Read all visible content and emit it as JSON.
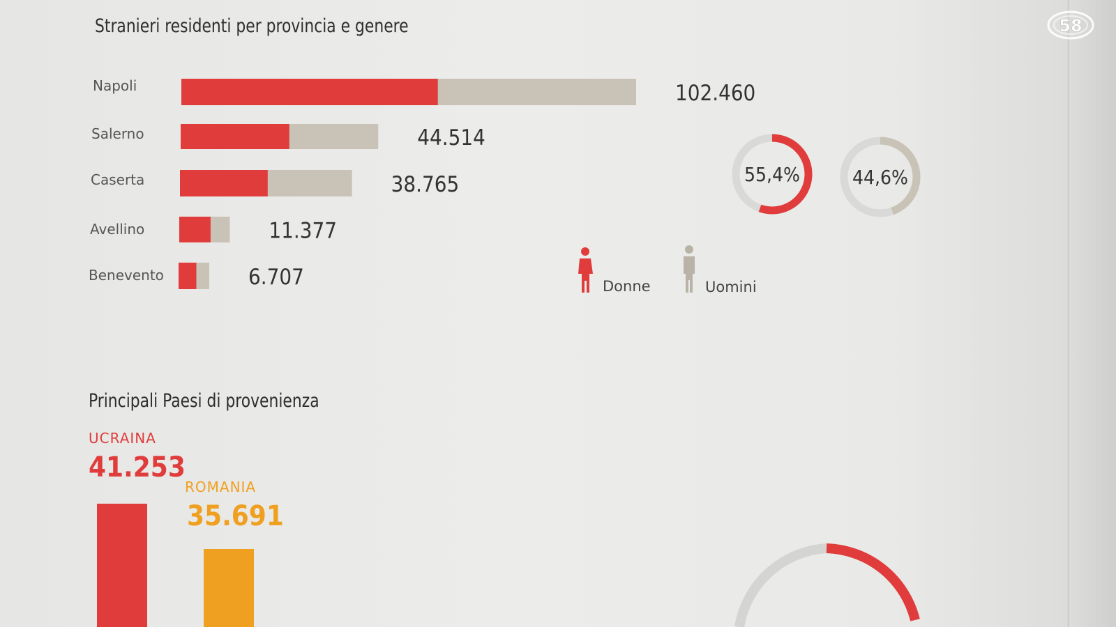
{
  "logo": {
    "text": "58"
  },
  "chart_data": [
    {
      "type": "bar",
      "title": "Stranieri residenti per provincia e genere",
      "categories": [
        "Napoli",
        "Salerno",
        "Caserta",
        "Avellino",
        "Benevento"
      ],
      "values": [
        102460,
        44514,
        38765,
        11377,
        6707
      ],
      "value_labels": [
        "102.460",
        "44.514",
        "38.765",
        "11.377",
        "6.707"
      ],
      "donne_share": [
        0.564,
        0.55,
        0.51,
        0.62,
        0.58
      ],
      "colors": {
        "donne": "#e03c3c",
        "uomini": "#c9c3b7"
      },
      "gender_rings": [
        {
          "label": "55,4%",
          "value": 55.4,
          "color": "#e03c3c"
        },
        {
          "label": "44,6%",
          "value": 44.6,
          "color": "#c9c3b7"
        }
      ],
      "legend": [
        {
          "label": "Donne",
          "color": "#e03c3c",
          "icon": "woman-icon"
        },
        {
          "label": "Uomini",
          "color": "#b9b3a7",
          "icon": "man-icon"
        }
      ]
    },
    {
      "type": "bar",
      "title": "Principali Paesi di provenienza",
      "categories": [
        "UCRAINA",
        "ROMANIA"
      ],
      "values": [
        41253,
        35691
      ],
      "value_labels": [
        "41.253",
        "35.691"
      ],
      "colors": [
        "#e03c3c",
        "#f0a020"
      ]
    }
  ]
}
